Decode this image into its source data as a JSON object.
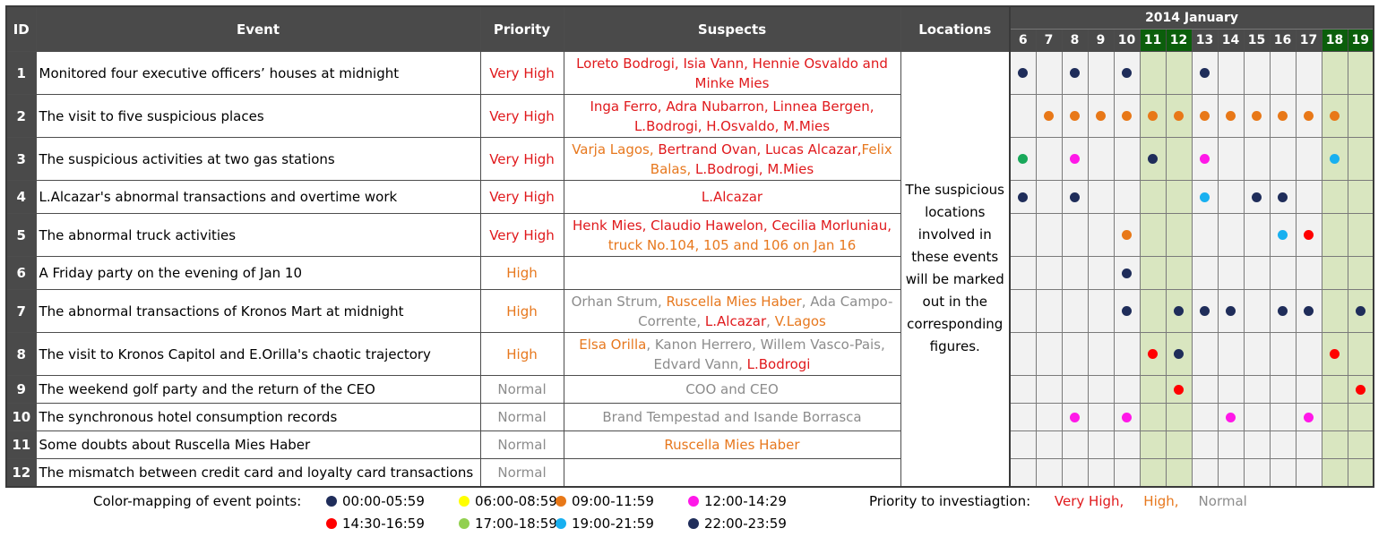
{
  "colors": {
    "priority": {
      "Very High": "#e0191c",
      "High": "#e7781e",
      "Normal": "#8c8c8c"
    },
    "suspect": {
      "red": "#e0191c",
      "orange": "#e7781e",
      "gray": "#8c8c8c"
    },
    "dots": {
      "navy": "#1f2d5a",
      "yellow": "#ffff00",
      "orange": "#e87818",
      "magenta": "#ff18e8",
      "red": "#ff0000",
      "green": "#18a85a",
      "lightgreen": "#92d050",
      "cyan": "#18b0f0"
    }
  },
  "header": {
    "id": "ID",
    "event": "Event",
    "priority": "Priority",
    "suspects": "Suspects",
    "locations": "Locations",
    "month": "2014 January",
    "days": [
      {
        "label": "6",
        "weekend": false
      },
      {
        "label": "7",
        "weekend": false
      },
      {
        "label": "8",
        "weekend": false
      },
      {
        "label": "9",
        "weekend": false
      },
      {
        "label": "10",
        "weekend": false
      },
      {
        "label": "11",
        "weekend": true
      },
      {
        "label": "12",
        "weekend": true
      },
      {
        "label": "13",
        "weekend": false
      },
      {
        "label": "14",
        "weekend": false
      },
      {
        "label": "15",
        "weekend": false
      },
      {
        "label": "16",
        "weekend": false
      },
      {
        "label": "17",
        "weekend": false
      },
      {
        "label": "18",
        "weekend": true
      },
      {
        "label": "19",
        "weekend": true
      }
    ]
  },
  "locations_note": "The suspicious locations involved in these events will be marked out in the corresponding figures.",
  "events": [
    {
      "id": "1",
      "event": "Monitored four executive officers’ houses at midnight",
      "priority": "Very High",
      "suspects": [
        {
          "text": "Loreto Bodrogi, Isia Vann, Hennie Osvaldo and Minke Mies",
          "color": "red"
        }
      ],
      "points": [
        {
          "day": "6",
          "color": "navy"
        },
        {
          "day": "8",
          "color": "navy"
        },
        {
          "day": "10",
          "color": "navy"
        },
        {
          "day": "13",
          "color": "navy"
        }
      ]
    },
    {
      "id": "2",
      "event": "The visit to five suspicious places",
      "priority": "Very High",
      "suspects": [
        {
          "text": "Inga Ferro, Adra Nubarron, Linnea Bergen, L.Bodrogi, H.Osvaldo, M.Mies",
          "color": "red"
        }
      ],
      "points": [
        {
          "day": "7",
          "color": "orange"
        },
        {
          "day": "8",
          "color": "orange"
        },
        {
          "day": "9",
          "color": "orange"
        },
        {
          "day": "10",
          "color": "orange"
        },
        {
          "day": "11",
          "color": "orange"
        },
        {
          "day": "12",
          "color": "orange"
        },
        {
          "day": "13",
          "color": "orange"
        },
        {
          "day": "14",
          "color": "orange"
        },
        {
          "day": "15",
          "color": "orange"
        },
        {
          "day": "16",
          "color": "orange"
        },
        {
          "day": "17",
          "color": "orange"
        },
        {
          "day": "18",
          "color": "orange"
        }
      ]
    },
    {
      "id": "3",
      "event": "The suspicious activities at two gas stations",
      "priority": "Very High",
      "suspects": [
        {
          "text": "Varja Lagos, ",
          "color": "orange"
        },
        {
          "text": "Bertrand Ovan, ",
          "color": "red"
        },
        {
          "text": "Lucas Alcazar,",
          "color": "red"
        },
        {
          "text": "Felix Balas, ",
          "color": "orange"
        },
        {
          "text": "L.Bodrogi, M.Mies",
          "color": "red"
        }
      ],
      "points": [
        {
          "day": "6",
          "color": "green"
        },
        {
          "day": "8",
          "color": "magenta"
        },
        {
          "day": "11",
          "color": "navy"
        },
        {
          "day": "13",
          "color": "magenta"
        },
        {
          "day": "18",
          "color": "cyan"
        }
      ]
    },
    {
      "id": "4",
      "event": "L.Alcazar's abnormal transactions and overtime work",
      "priority": "Very High",
      "suspects": [
        {
          "text": "L.Alcazar",
          "color": "red"
        }
      ],
      "points": [
        {
          "day": "6",
          "color": "navy"
        },
        {
          "day": "8",
          "color": "navy"
        },
        {
          "day": "13",
          "color": "cyan"
        },
        {
          "day": "15",
          "color": "navy"
        },
        {
          "day": "16",
          "color": "navy"
        }
      ]
    },
    {
      "id": "5",
      "event": "The abnormal truck activities",
      "priority": "Very High",
      "suspects": [
        {
          "text": "Henk Mies, Claudio Hawelon, Cecilia Morluniau, ",
          "color": "red"
        },
        {
          "text": "truck No.104, 105 and 106 on Jan 16",
          "color": "orange"
        }
      ],
      "points": [
        {
          "day": "10",
          "color": "orange"
        },
        {
          "day": "16",
          "color": "cyan"
        },
        {
          "day": "17",
          "color": "red"
        }
      ]
    },
    {
      "id": "6",
      "event": "A Friday party on the evening of Jan 10",
      "priority": "High",
      "suspects": [],
      "points": [
        {
          "day": "10",
          "color": "navy"
        }
      ]
    },
    {
      "id": "7",
      "event": "The abnormal transactions of Kronos Mart at midnight",
      "priority": "High",
      "suspects": [
        {
          "text": "Orhan Strum, ",
          "color": "gray"
        },
        {
          "text": "Ruscella Mies Haber",
          "color": "orange"
        },
        {
          "text": ", Ada Campo-Corrente, ",
          "color": "gray"
        },
        {
          "text": "L.Alcazar",
          "color": "red"
        },
        {
          "text": ", ",
          "color": "gray"
        },
        {
          "text": "V.Lagos",
          "color": "orange"
        }
      ],
      "points": [
        {
          "day": "10",
          "color": "navy"
        },
        {
          "day": "12",
          "color": "navy"
        },
        {
          "day": "13",
          "color": "navy"
        },
        {
          "day": "14",
          "color": "navy"
        },
        {
          "day": "16",
          "color": "navy"
        },
        {
          "day": "17",
          "color": "navy"
        },
        {
          "day": "19",
          "color": "navy"
        }
      ]
    },
    {
      "id": "8",
      "event": "The visit to Kronos Capitol and E.Orilla's chaotic trajectory",
      "priority": "High",
      "suspects": [
        {
          "text": "Elsa Orilla",
          "color": "orange"
        },
        {
          "text": ", Kanon Herrero, Willem Vasco-Pais, Edvard Vann, ",
          "color": "gray"
        },
        {
          "text": "L.Bodrogi",
          "color": "red"
        }
      ],
      "points": [
        {
          "day": "11",
          "color": "red"
        },
        {
          "day": "12",
          "color": "navy"
        },
        {
          "day": "18",
          "color": "red"
        }
      ]
    },
    {
      "id": "9",
      "event": "The weekend golf party and the return of the CEO",
      "priority": "Normal",
      "suspects": [
        {
          "text": "COO and CEO",
          "color": "gray"
        }
      ],
      "points": [
        {
          "day": "12",
          "color": "red"
        },
        {
          "day": "19",
          "color": "red"
        }
      ]
    },
    {
      "id": "10",
      "event": "The synchronous hotel consumption records",
      "priority": "Normal",
      "suspects": [
        {
          "text": "Brand Tempestad and Isande Borrasca",
          "color": "gray"
        }
      ],
      "points": [
        {
          "day": "8",
          "color": "magenta"
        },
        {
          "day": "10",
          "color": "magenta"
        },
        {
          "day": "14",
          "color": "magenta"
        },
        {
          "day": "17",
          "color": "magenta"
        }
      ]
    },
    {
      "id": "11",
      "event": "Some doubts about Ruscella Mies Haber",
      "priority": "Normal",
      "suspects": [
        {
          "text": "Ruscella Mies Haber",
          "color": "orange"
        }
      ],
      "points": []
    },
    {
      "id": "12",
      "event": "The mismatch between credit card and loyalty card transactions",
      "priority": "Normal",
      "suspects": [],
      "points": []
    }
  ],
  "legend": {
    "label": "Color-mapping of event points:",
    "items": [
      {
        "label": "00:00-05:59",
        "color": "#1f2d5a"
      },
      {
        "label": "06:00-08:59",
        "color": "#ffff00"
      },
      {
        "label": "09:00-11:59",
        "color": "#e87818"
      },
      {
        "label": "12:00-14:29",
        "color": "#ff18e8"
      },
      {
        "label": "14:30-16:59",
        "color": "#ff0000"
      },
      {
        "label": "17:00-18:59",
        "color": "#92d050"
      },
      {
        "label": "19:00-21:59",
        "color": "#18b0f0"
      },
      {
        "label": "22:00-23:59",
        "color": "#1f2d5a"
      }
    ]
  },
  "priority_legend": {
    "label": "Priority to investiagtion:",
    "items": [
      {
        "label": "Very High,",
        "color": "#e0191c"
      },
      {
        "label": "High,",
        "color": "#e7781e"
      },
      {
        "label": "Normal",
        "color": "#8c8c8c"
      }
    ]
  }
}
